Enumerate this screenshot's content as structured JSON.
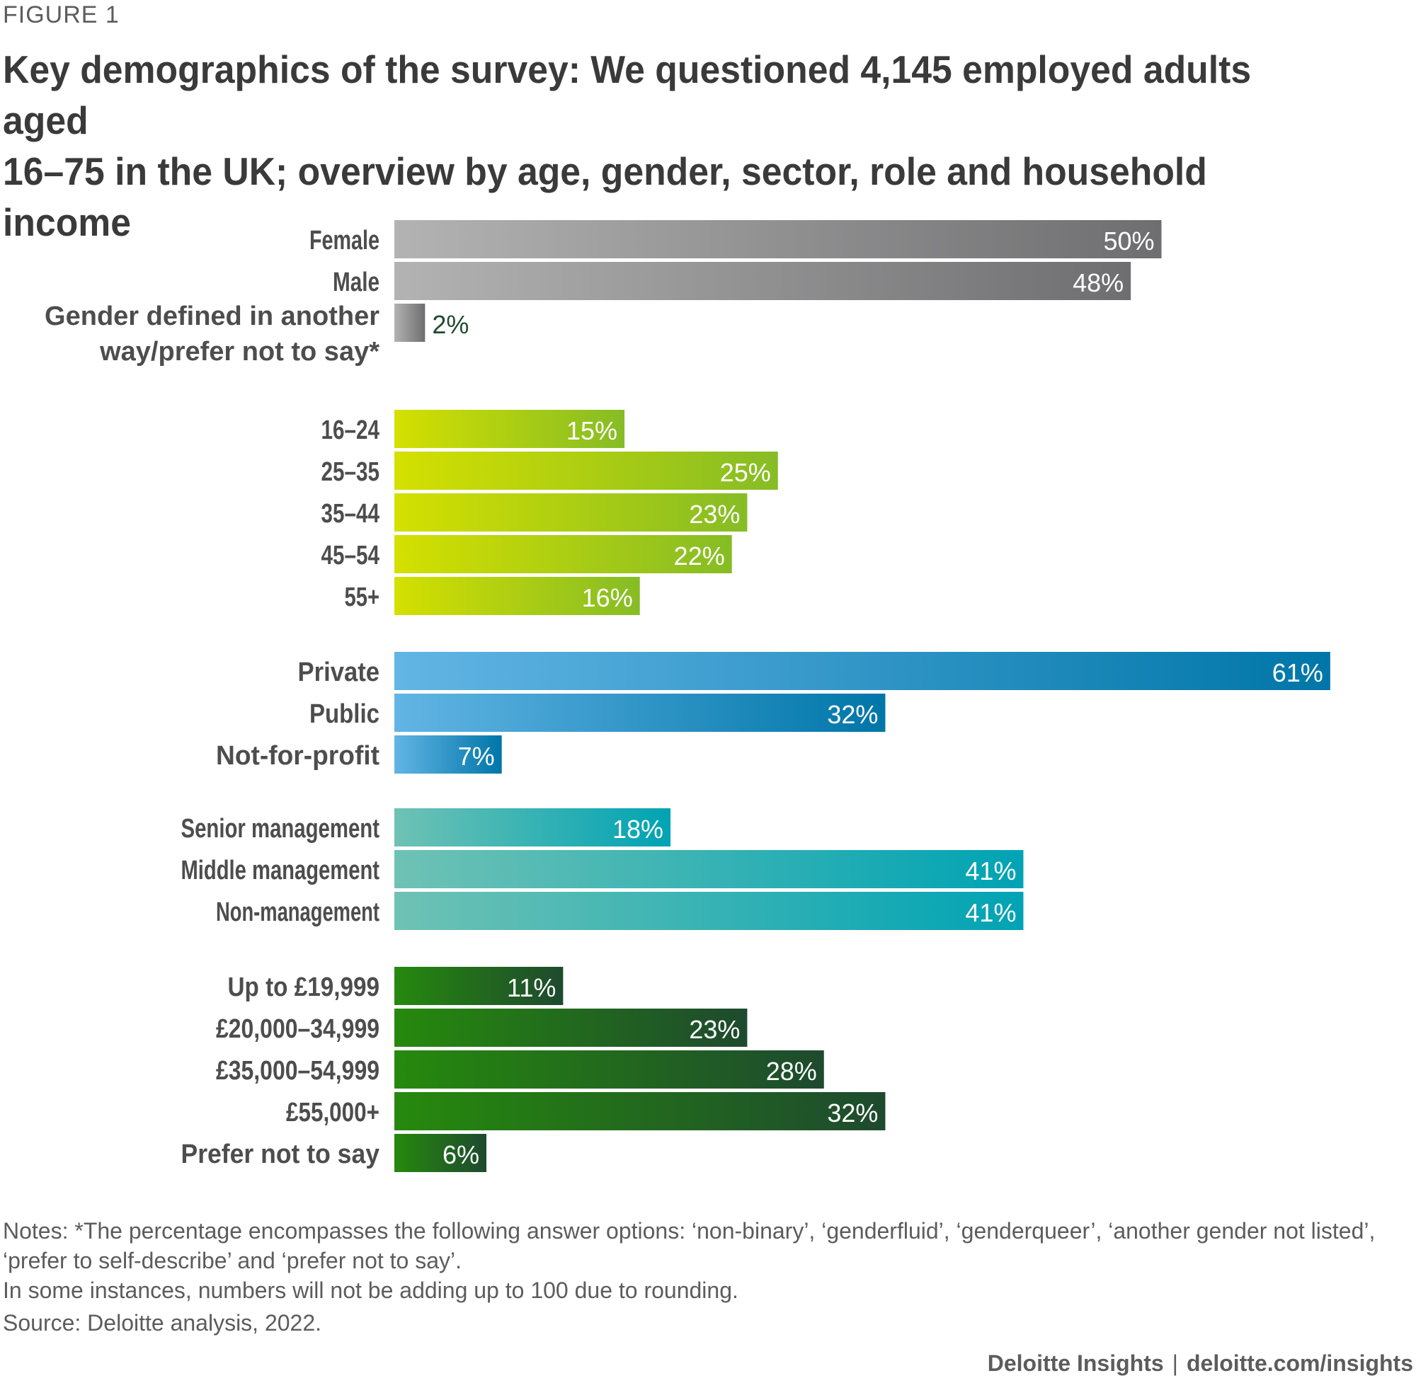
{
  "figure_label": "FIGURE 1",
  "title": "Key demographics of the survey: We questioned 4,145 employed adults aged\n16–75 in the UK; overview by age, gender, sector, role and household income",
  "colors": {
    "gender": [
      "#b3b3b3",
      "#6e6e70"
    ],
    "age": [
      "#d4e000",
      "#86bc25"
    ],
    "sector": [
      "#62b5e5",
      "#0076a8"
    ],
    "role": [
      "#6fc2b4",
      "#00a3b4"
    ],
    "income": [
      "#26890d",
      "#1e4a2e"
    ],
    "label": "#4d4d4d",
    "value_inside": "#ffffff",
    "value_outside": "#1e4a2e"
  },
  "chart_data": {
    "type": "bar",
    "orientation": "horizontal",
    "unit": "%",
    "xlim": [
      0,
      61
    ],
    "groups": [
      {
        "name": "gender",
        "labels": [
          "Female",
          "Male",
          "Gender defined in another way/prefer not to say*"
        ],
        "values": [
          50,
          48,
          2
        ]
      },
      {
        "name": "age",
        "labels": [
          "16–24",
          "25–35",
          "35–44",
          "45–54",
          "55+"
        ],
        "values": [
          15,
          25,
          23,
          22,
          16
        ]
      },
      {
        "name": "sector",
        "labels": [
          "Private",
          "Public",
          "Not-for-profit"
        ],
        "values": [
          61,
          32,
          7
        ]
      },
      {
        "name": "role",
        "labels": [
          "Senior management",
          "Middle management",
          "Non-management"
        ],
        "values": [
          18,
          41,
          41
        ]
      },
      {
        "name": "income",
        "labels": [
          "Up to £19,999",
          "£20,000–34,999",
          "£35,000–54,999",
          "£55,000+",
          "Prefer not to say"
        ],
        "values": [
          11,
          23,
          28,
          32,
          6
        ]
      }
    ]
  },
  "notes": {
    "line1": "Notes: *The percentage encompasses the following answer options: ‘non-binary’, ‘genderfluid’, ‘genderqueer’, ‘another gender not listed’, ‘prefer to self-describe’ and ‘prefer not to say’.",
    "line2": "In some instances, numbers will not be adding up to 100 due to rounding.",
    "source": "Source: Deloitte analysis, 2022."
  },
  "footer": {
    "brand": "Deloitte Insights",
    "separator": "|",
    "url": "deloitte.com/insights"
  }
}
